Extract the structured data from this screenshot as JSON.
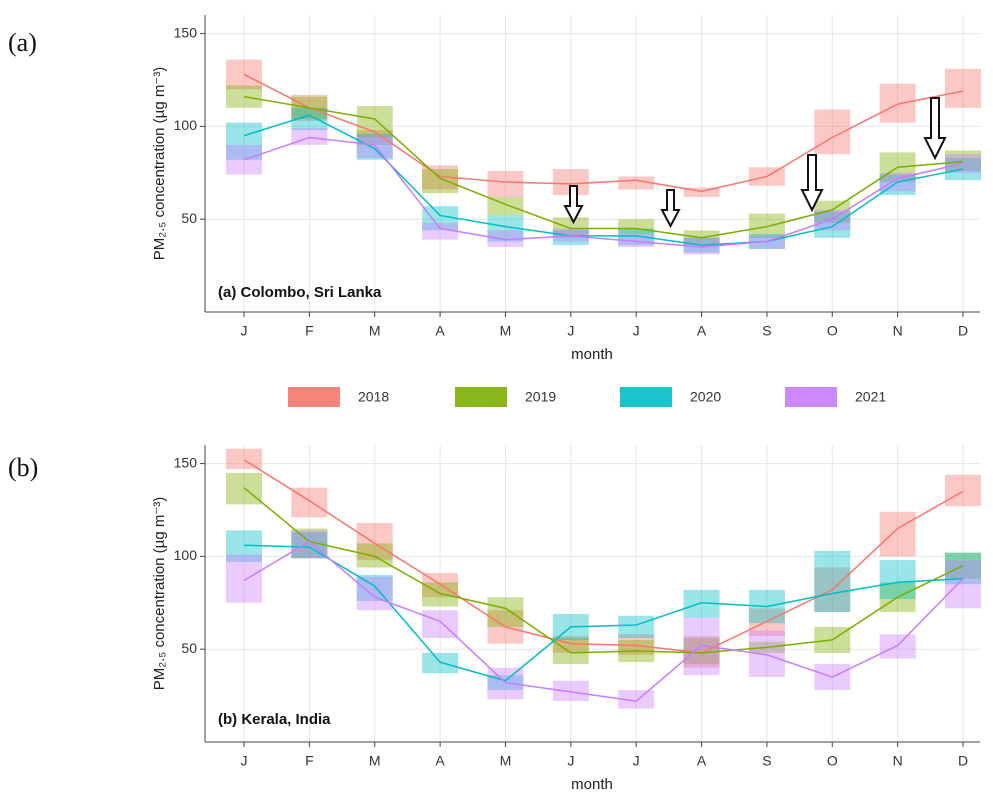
{
  "chart_data": [
    {
      "type": "line",
      "panel_label": "(a)",
      "title": "(a) Colombo, Sri Lanka",
      "xlabel": "month",
      "ylabel": "PM₂.₅ concentration (µg m⁻³)",
      "categories": [
        "J",
        "F",
        "M",
        "A",
        "M",
        "J",
        "J",
        "A",
        "S",
        "O",
        "N",
        "D"
      ],
      "ylim": [
        0,
        160
      ],
      "yticks": [
        50,
        100,
        150
      ],
      "grid": true,
      "series": [
        {
          "name": "2018",
          "color": "#f8766d",
          "values": [
            128,
            110,
            97,
            73,
            70,
            69,
            71,
            65,
            73,
            94,
            112,
            119
          ],
          "low": [
            120,
            103,
            90,
            66,
            62,
            63,
            66,
            62,
            68,
            85,
            102,
            110
          ],
          "high": [
            136,
            117,
            98,
            79,
            76,
            77,
            73,
            67,
            78,
            109,
            123,
            131
          ]
        },
        {
          "name": "2019",
          "color": "#7cae00",
          "values": [
            116,
            110,
            104,
            72,
            58,
            45,
            45,
            40,
            46,
            55,
            78,
            81
          ],
          "low": [
            110,
            104,
            94,
            64,
            52,
            40,
            42,
            36,
            40,
            48,
            70,
            76
          ],
          "high": [
            122,
            116,
            111,
            77,
            62,
            51,
            50,
            44,
            53,
            60,
            86,
            87
          ]
        },
        {
          "name": "2020",
          "color": "#00bfc4",
          "values": [
            95,
            106,
            88,
            52,
            46,
            41,
            41,
            36,
            38,
            46,
            70,
            77
          ],
          "low": [
            82,
            98,
            82,
            44,
            38,
            36,
            36,
            32,
            34,
            40,
            63,
            71
          ],
          "high": [
            102,
            110,
            96,
            57,
            52,
            44,
            45,
            40,
            42,
            54,
            74,
            83
          ]
        },
        {
          "name": "2021",
          "color": "#c77cff",
          "values": [
            82,
            94,
            90,
            45,
            39,
            41,
            38,
            35,
            38,
            50,
            72,
            80
          ],
          "low": [
            74,
            90,
            83,
            39,
            35,
            38,
            35,
            31,
            34,
            44,
            65,
            75
          ],
          "high": [
            90,
            99,
            95,
            48,
            44,
            45,
            42,
            40,
            41,
            55,
            75,
            85
          ]
        }
      ]
    },
    {
      "type": "line",
      "panel_label": "(b)",
      "title": "(b) Kerala, India",
      "xlabel": "month",
      "ylabel": "PM₂.₅ concentration (µg m⁻³)",
      "categories": [
        "J",
        "F",
        "M",
        "A",
        "M",
        "J",
        "J",
        "A",
        "S",
        "O",
        "N",
        "D"
      ],
      "ylim": [
        0,
        160
      ],
      "yticks": [
        50,
        100,
        150
      ],
      "grid": true,
      "series": [
        {
          "color": "#f8766d",
          "values": [
            152,
            130,
            107,
            85,
            62,
            53,
            52,
            48,
            65,
            82,
            115,
            135
          ],
          "low": [
            147,
            121,
            98,
            78,
            53,
            48,
            47,
            40,
            57,
            70,
            100,
            127
          ],
          "high": [
            158,
            137,
            118,
            91,
            71,
            57,
            58,
            57,
            72,
            94,
            124,
            144
          ]
        },
        {
          "color": "#7cae00",
          "values": [
            137,
            108,
            100,
            80,
            72,
            48,
            49,
            48,
            51,
            55,
            78,
            95
          ],
          "low": [
            128,
            99,
            94,
            73,
            62,
            42,
            43,
            42,
            48,
            48,
            70,
            88
          ],
          "high": [
            145,
            115,
            107,
            86,
            78,
            56,
            55,
            56,
            54,
            62,
            86,
            102
          ]
        },
        {
          "color": "#00bfc4",
          "values": [
            106,
            105,
            84,
            43,
            33,
            62,
            63,
            75,
            73,
            80,
            86,
            88
          ],
          "low": [
            97,
            99,
            76,
            37,
            28,
            55,
            56,
            67,
            64,
            70,
            77,
            85
          ],
          "high": [
            114,
            113,
            90,
            48,
            36,
            69,
            68,
            82,
            82,
            103,
            98,
            102
          ]
        },
        {
          "color": "#c77cff",
          "values": [
            87,
            108,
            78,
            65,
            32,
            27,
            22,
            52,
            47,
            35,
            52,
            88
          ],
          "low": [
            75,
            99,
            71,
            56,
            23,
            22,
            18,
            36,
            35,
            28,
            45,
            72
          ],
          "high": [
            101,
            114,
            89,
            71,
            40,
            33,
            28,
            67,
            60,
            42,
            58,
            98
          ]
        }
      ]
    }
  ]
}
